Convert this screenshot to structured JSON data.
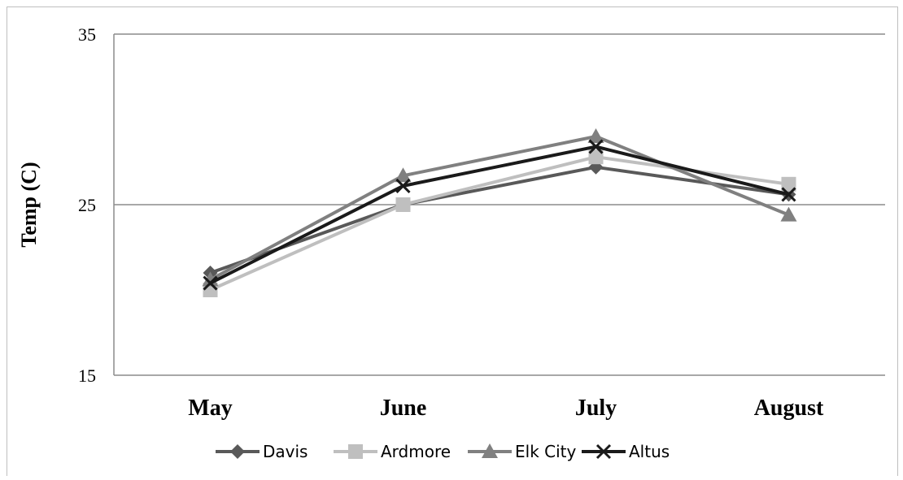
{
  "chart_data": {
    "type": "line",
    "title": "",
    "xlabel": "",
    "ylabel": "Temp (C)",
    "categories": [
      "May",
      "June",
      "July",
      "August"
    ],
    "ylim": [
      15,
      35
    ],
    "yticks": [
      15,
      25,
      35
    ],
    "grid": true,
    "legend_position": "bottom",
    "series": [
      {
        "name": "Davis",
        "values": [
          21.0,
          25.0,
          27.2,
          25.6
        ],
        "color": "#595959",
        "marker": "diamond",
        "width": 4
      },
      {
        "name": "Ardmore",
        "values": [
          20.0,
          25.0,
          27.8,
          26.2
        ],
        "color": "#bfbfbf",
        "marker": "square",
        "width": 4
      },
      {
        "name": "Elk City",
        "values": [
          20.6,
          26.7,
          29.0,
          24.4
        ],
        "color": "#808080",
        "marker": "triangle",
        "width": 4
      },
      {
        "name": "Altus",
        "values": [
          20.4,
          26.1,
          28.4,
          25.6
        ],
        "color": "#1a1a1a",
        "marker": "x",
        "width": 4
      }
    ]
  }
}
